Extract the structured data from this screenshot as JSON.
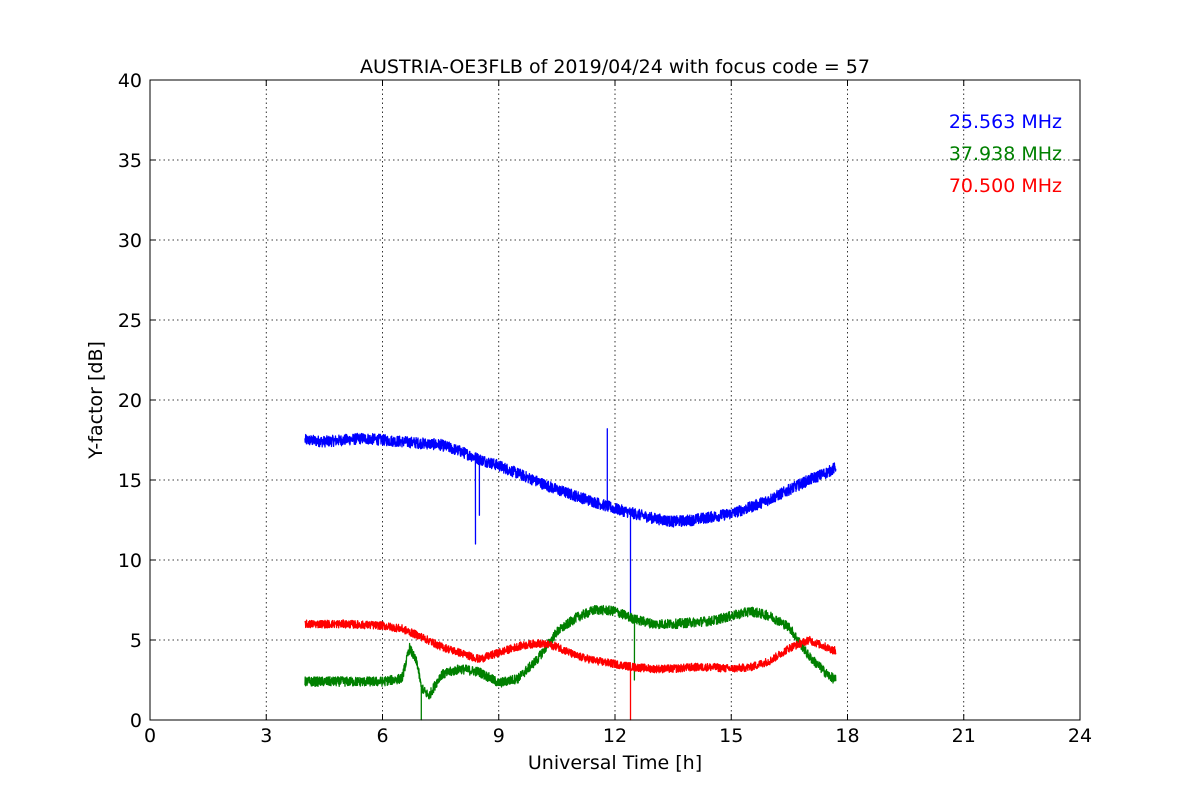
{
  "chart_data": {
    "type": "line",
    "title": "AUSTRIA-OE3FLB of 2019/04/24 with focus code = 57",
    "xlabel": "Universal Time [h]",
    "ylabel": "Y-factor [dB]",
    "xlim": [
      0,
      24
    ],
    "ylim": [
      0,
      40
    ],
    "xticks": [
      0,
      3,
      6,
      9,
      12,
      15,
      18,
      21,
      24
    ],
    "yticks": [
      0,
      5,
      10,
      15,
      20,
      25,
      30,
      35,
      40
    ],
    "grid": true,
    "legend_placement": "top-right",
    "series": [
      {
        "name": "25.563 MHz",
        "color": "#0000ff",
        "noise": 0.35,
        "points": [
          [
            4.0,
            17.5
          ],
          [
            4.5,
            17.4
          ],
          [
            5.0,
            17.5
          ],
          [
            5.5,
            17.6
          ],
          [
            6.0,
            17.5
          ],
          [
            6.5,
            17.4
          ],
          [
            7.0,
            17.3
          ],
          [
            7.5,
            17.2
          ],
          [
            8.0,
            16.8
          ],
          [
            8.5,
            16.3
          ],
          [
            9.0,
            15.9
          ],
          [
            9.5,
            15.4
          ],
          [
            10.0,
            14.9
          ],
          [
            10.5,
            14.4
          ],
          [
            11.0,
            14.0
          ],
          [
            11.5,
            13.6
          ],
          [
            12.0,
            13.2
          ],
          [
            12.5,
            12.9
          ],
          [
            13.0,
            12.6
          ],
          [
            13.5,
            12.4
          ],
          [
            14.0,
            12.5
          ],
          [
            14.5,
            12.7
          ],
          [
            15.0,
            12.9
          ],
          [
            15.5,
            13.3
          ],
          [
            16.0,
            13.8
          ],
          [
            16.5,
            14.4
          ],
          [
            17.0,
            15.0
          ],
          [
            17.5,
            15.5
          ],
          [
            17.7,
            15.8
          ]
        ],
        "spikes": [
          [
            8.4,
            11.0
          ],
          [
            8.5,
            12.8
          ],
          [
            11.8,
            18.2
          ],
          [
            12.4,
            6.5
          ]
        ]
      },
      {
        "name": "37.938 MHz",
        "color": "#008000",
        "noise": 0.3,
        "points": [
          [
            4.0,
            2.4
          ],
          [
            5.0,
            2.4
          ],
          [
            6.0,
            2.4
          ],
          [
            6.5,
            2.6
          ],
          [
            6.7,
            4.5
          ],
          [
            6.9,
            3.5
          ],
          [
            7.0,
            2.0
          ],
          [
            7.2,
            1.5
          ],
          [
            7.5,
            2.8
          ],
          [
            8.0,
            3.2
          ],
          [
            8.5,
            3.0
          ],
          [
            9.0,
            2.3
          ],
          [
            9.5,
            2.6
          ],
          [
            10.0,
            3.8
          ],
          [
            10.5,
            5.5
          ],
          [
            11.0,
            6.4
          ],
          [
            11.5,
            6.9
          ],
          [
            12.0,
            6.8
          ],
          [
            12.5,
            6.3
          ],
          [
            13.0,
            6.0
          ],
          [
            13.5,
            6.0
          ],
          [
            14.0,
            6.1
          ],
          [
            14.5,
            6.2
          ],
          [
            15.0,
            6.5
          ],
          [
            15.5,
            6.8
          ],
          [
            16.0,
            6.5
          ],
          [
            16.5,
            5.8
          ],
          [
            17.0,
            4.0
          ],
          [
            17.5,
            2.8
          ],
          [
            17.7,
            2.5
          ]
        ],
        "spikes": [
          [
            7.0,
            0.0
          ],
          [
            12.5,
            2.5
          ]
        ]
      },
      {
        "name": "70.500 MHz",
        "color": "#ff0000",
        "noise": 0.25,
        "points": [
          [
            4.0,
            6.0
          ],
          [
            5.0,
            6.0
          ],
          [
            6.0,
            5.9
          ],
          [
            6.5,
            5.7
          ],
          [
            7.0,
            5.2
          ],
          [
            7.5,
            4.6
          ],
          [
            8.0,
            4.2
          ],
          [
            8.5,
            3.8
          ],
          [
            9.0,
            4.2
          ],
          [
            9.5,
            4.6
          ],
          [
            10.0,
            4.8
          ],
          [
            10.5,
            4.6
          ],
          [
            11.0,
            4.0
          ],
          [
            11.5,
            3.7
          ],
          [
            12.0,
            3.5
          ],
          [
            12.5,
            3.3
          ],
          [
            13.0,
            3.2
          ],
          [
            13.5,
            3.2
          ],
          [
            14.0,
            3.3
          ],
          [
            14.5,
            3.3
          ],
          [
            15.0,
            3.2
          ],
          [
            15.5,
            3.3
          ],
          [
            16.0,
            3.7
          ],
          [
            16.5,
            4.5
          ],
          [
            17.0,
            5.0
          ],
          [
            17.5,
            4.5
          ],
          [
            17.7,
            4.3
          ]
        ],
        "spikes": [
          [
            12.4,
            0.0
          ]
        ]
      }
    ]
  }
}
